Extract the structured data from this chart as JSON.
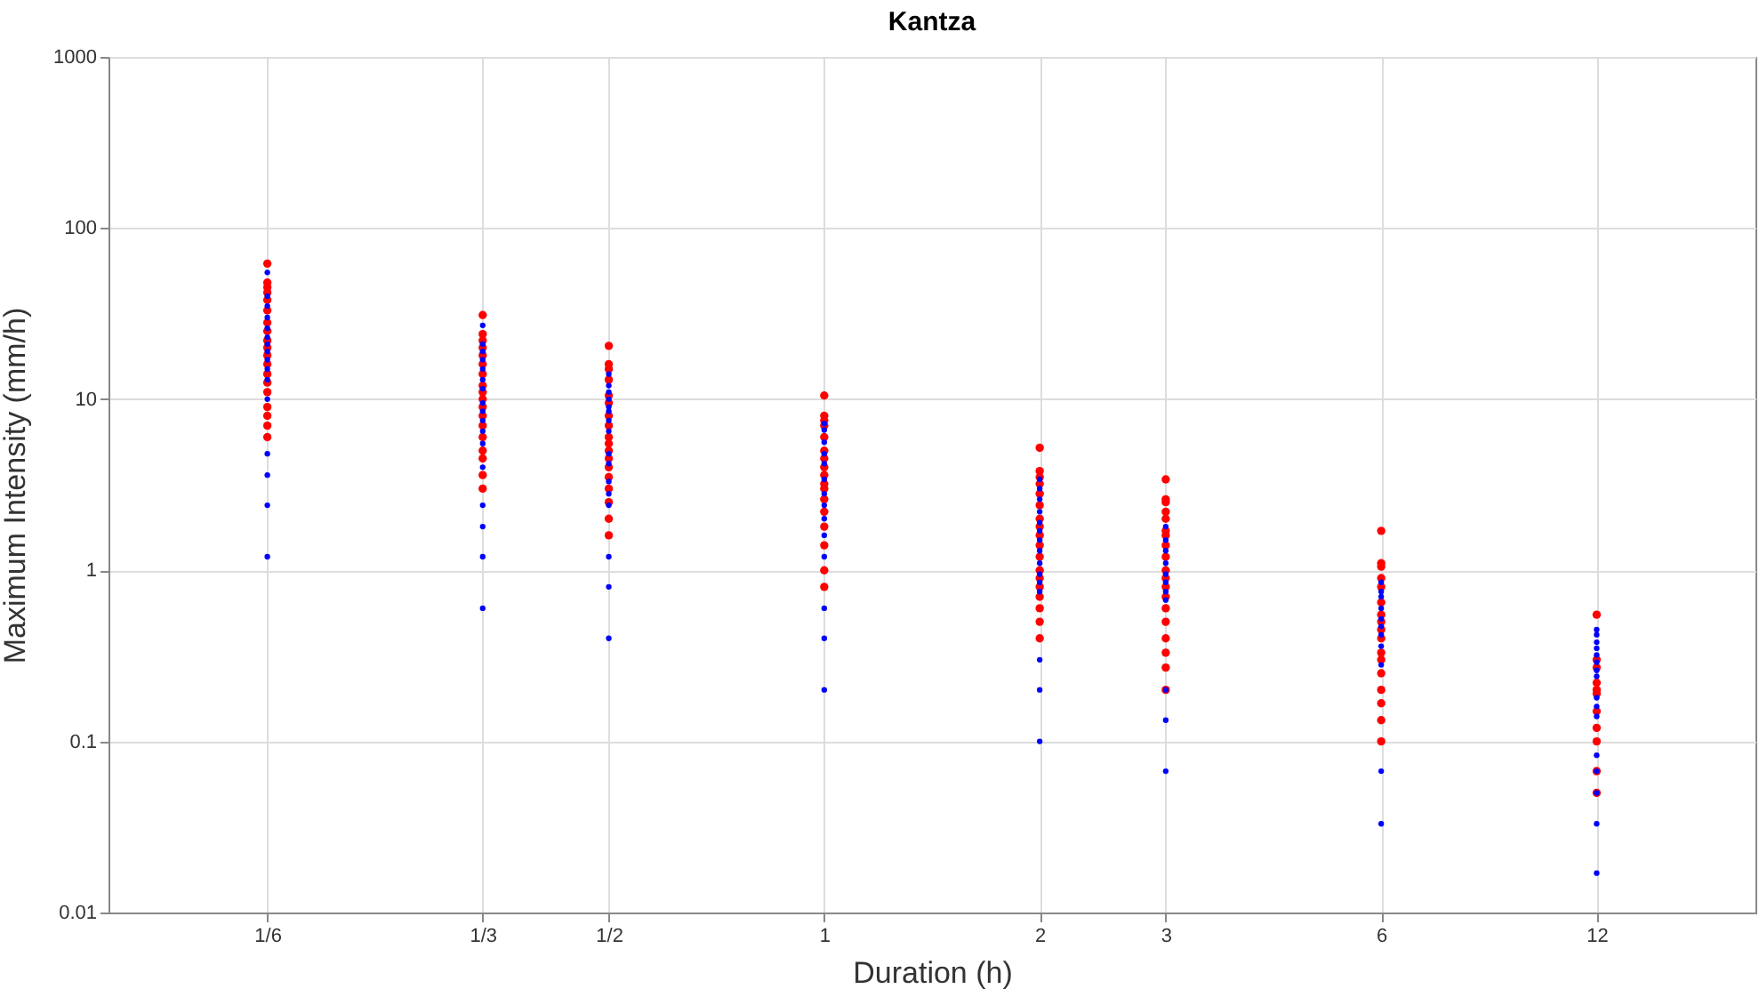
{
  "chart_data": {
    "type": "scatter",
    "title": "Kantza",
    "xlabel": "Duration (h)",
    "ylabel": "Maximum Intensity (mm/h)",
    "log": "xy",
    "grid": true,
    "marker": "circle",
    "xlim": [
      0.1,
      20
    ],
    "ylim": [
      0.01,
      1000
    ],
    "xticks": [
      {
        "value": 0.1667,
        "label": "1/6"
      },
      {
        "value": 0.3333,
        "label": "1/3"
      },
      {
        "value": 0.5,
        "label": "1/2"
      },
      1,
      2,
      3,
      6,
      12
    ],
    "yticks": [
      0.01,
      0.1,
      1,
      10,
      100,
      1000
    ],
    "series": [
      {
        "color": "#ff0000",
        "x": [
          0.1667,
          0.1667,
          0.1667,
          0.1667,
          0.1667,
          0.1667,
          0.1667,
          0.1667,
          0.1667,
          0.1667,
          0.1667,
          0.1667,
          0.1667,
          0.1667,
          0.1667,
          0.1667,
          0.1667,
          0.1667,
          0.1667,
          0.3333,
          0.3333,
          0.3333,
          0.3333,
          0.3333,
          0.3333,
          0.3333,
          0.3333,
          0.3333,
          0.3333,
          0.3333,
          0.3333,
          0.3333,
          0.3333,
          0.3333,
          0.3333,
          0.3333,
          0.3333,
          0.5,
          0.5,
          0.5,
          0.5,
          0.5,
          0.5,
          0.5,
          0.5,
          0.5,
          0.5,
          0.5,
          0.5,
          0.5,
          0.5,
          0.5,
          0.5,
          0.5,
          0.5,
          1,
          1,
          1,
          1,
          1,
          1,
          1,
          1,
          1,
          1,
          1,
          1,
          1,
          1,
          1,
          1,
          1,
          2,
          2,
          2,
          2,
          2,
          2,
          2,
          2,
          2,
          2,
          2,
          2,
          2,
          2,
          2,
          2,
          2,
          2,
          3,
          3,
          3,
          3,
          3,
          3,
          3,
          3,
          3,
          3,
          3,
          3,
          3,
          3,
          3,
          3,
          3,
          3,
          3,
          6,
          6,
          6,
          6,
          6,
          6,
          6,
          6,
          6,
          6,
          6,
          6,
          6,
          6,
          6,
          6,
          6,
          12,
          12,
          12,
          12,
          12,
          12,
          12,
          12,
          12,
          12,
          12
        ],
        "values": [
          62,
          48,
          45,
          42,
          38,
          33,
          28,
          25,
          22,
          20,
          18,
          16,
          14,
          12.5,
          11,
          9,
          8,
          7,
          6,
          31,
          24,
          22,
          20,
          18,
          16,
          14,
          12,
          11,
          10,
          9,
          8,
          7,
          6,
          5,
          4.5,
          3.6,
          3,
          20.5,
          16,
          15,
          13,
          10.5,
          9.5,
          8,
          7,
          6,
          5.5,
          5,
          4.5,
          4,
          3.5,
          3,
          2.5,
          2,
          1.6,
          10.5,
          8,
          7.5,
          7,
          6,
          5,
          4.5,
          4,
          3.6,
          3.2,
          3,
          2.6,
          2.2,
          1.8,
          1.4,
          1,
          0.8,
          5.2,
          3.8,
          3.5,
          3.2,
          2.8,
          2.4,
          2,
          1.8,
          1.6,
          1.4,
          1.2,
          1,
          0.9,
          0.8,
          0.7,
          0.6,
          0.5,
          0.4,
          3.4,
          2.6,
          2.5,
          2.2,
          2,
          1.7,
          1.6,
          1.4,
          1.2,
          1,
          0.9,
          0.8,
          0.7,
          0.6,
          0.5,
          0.4,
          0.33,
          0.27,
          0.2,
          1.7,
          1.1,
          1.05,
          0.9,
          0.8,
          0.65,
          0.55,
          0.5,
          0.45,
          0.4,
          0.33,
          0.3,
          0.25,
          0.2,
          0.167,
          0.133,
          0.1,
          0.55,
          0.3,
          0.27,
          0.22,
          0.2,
          0.19,
          0.15,
          0.12,
          0.1,
          0.067,
          0.05
        ]
      },
      {
        "color": "#0000ff",
        "x": [
          0.1667,
          0.1667,
          0.1667,
          0.1667,
          0.1667,
          0.1667,
          0.1667,
          0.1667,
          0.1667,
          0.1667,
          0.1667,
          0.1667,
          0.1667,
          0.1667,
          0.1667,
          0.1667,
          0.3333,
          0.3333,
          0.3333,
          0.3333,
          0.3333,
          0.3333,
          0.3333,
          0.3333,
          0.3333,
          0.3333,
          0.3333,
          0.3333,
          0.3333,
          0.3333,
          0.3333,
          0.3333,
          0.3333,
          0.5,
          0.5,
          0.5,
          0.5,
          0.5,
          0.5,
          0.5,
          0.5,
          0.5,
          0.5,
          0.5,
          0.5,
          0.5,
          0.5,
          0.5,
          0.5,
          1,
          1,
          1,
          1,
          1,
          1,
          1,
          1,
          1,
          1,
          1,
          1,
          1,
          1,
          2,
          2,
          2,
          2,
          2,
          2,
          2,
          2,
          2,
          2,
          2,
          2,
          2,
          2,
          2,
          3,
          3,
          3,
          3,
          3,
          3,
          3,
          3,
          3,
          3,
          3,
          6,
          6,
          6,
          6,
          6,
          6,
          6,
          6,
          6,
          6,
          6,
          12,
          12,
          12,
          12,
          12,
          12,
          12,
          12,
          12,
          12,
          12,
          12,
          12,
          12,
          12,
          12
        ],
        "values": [
          55,
          40,
          35,
          30,
          26,
          23,
          21,
          19,
          17,
          15,
          13,
          10,
          4.8,
          3.6,
          2.4,
          1.2,
          27,
          21,
          19,
          17,
          15,
          13,
          11.5,
          9.5,
          8.5,
          7.5,
          6.5,
          5.5,
          4,
          2.4,
          1.8,
          1.2,
          0.6,
          14,
          12,
          11,
          10,
          9,
          8.5,
          7.5,
          6.5,
          4.8,
          4.2,
          3.3,
          2.8,
          2.4,
          1.2,
          0.8,
          0.4,
          7.2,
          6.6,
          5.6,
          4.8,
          4.2,
          3.4,
          2.8,
          2.4,
          2,
          1.6,
          1.2,
          0.6,
          0.4,
          0.2,
          3.4,
          3,
          2.6,
          2.2,
          1.9,
          1.7,
          1.5,
          1.3,
          1.1,
          0.95,
          0.85,
          0.75,
          0.3,
          0.2,
          0.1,
          1.8,
          1.5,
          1.3,
          1.1,
          0.95,
          0.85,
          0.75,
          0.67,
          0.2,
          0.133,
          0.067,
          0.85,
          0.75,
          0.7,
          0.6,
          0.52,
          0.47,
          0.42,
          0.36,
          0.28,
          0.067,
          0.033,
          0.45,
          0.42,
          0.38,
          0.35,
          0.32,
          0.29,
          0.26,
          0.24,
          0.18,
          0.16,
          0.14,
          0.083,
          0.067,
          0.05,
          0.033,
          0.017
        ]
      }
    ]
  }
}
